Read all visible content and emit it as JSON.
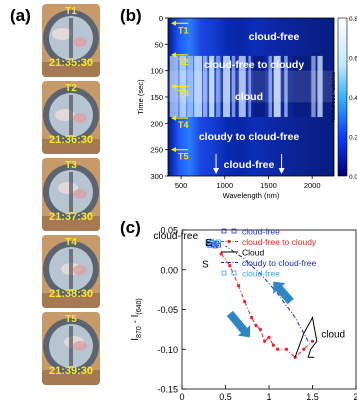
{
  "panel_a": {
    "label": "(a)",
    "frames": [
      {
        "tag": "T1",
        "time": "21:35:30"
      },
      {
        "tag": "T2",
        "time": "21:36:30"
      },
      {
        "tag": "T3",
        "time": "21:37:30"
      },
      {
        "tag": "T4",
        "time": "21:38:30"
      },
      {
        "tag": "T5",
        "time": "21:39:30"
      }
    ]
  },
  "panel_b": {
    "label": "(b)",
    "ylabel": "Time (sec)",
    "xlabel": "Wavelength (nm)",
    "yticks": [
      "0",
      "50",
      "100",
      "150",
      "200",
      "250",
      "300"
    ],
    "xticks": [
      "500",
      "1000",
      "1500",
      "2000"
    ],
    "markers": [
      "T1",
      "T2",
      "T3",
      "T4",
      "T5"
    ],
    "annotations": [
      "cloud-free",
      "cloud-free to cloudy",
      "cloud",
      "cloudy to cloud-free",
      "cloud-free"
    ],
    "colorbar_label": "Normalized radiance",
    "colorbar_ticks": [
      "0.8",
      "0.6",
      "0.4",
      "0.2",
      "0.0"
    ]
  },
  "panel_c": {
    "label": "(c)",
    "ylabel_main": "I",
    "ylabel_sub1": "870",
    "ylabel_mid": " - I",
    "ylabel_sub2": "(640)",
    "yticks": [
      "0.05",
      "0.00",
      "-0.05",
      "-0.10",
      "-0.15"
    ],
    "xticks": [
      "0",
      "0.5",
      "1",
      "1.5",
      "2"
    ],
    "annotations": {
      "cloud_free": "cloud-free",
      "E": "E",
      "S": "S",
      "cloud": "cloud"
    },
    "legend": [
      {
        "name": "cloud-free",
        "color": "#2233dd",
        "style": "square"
      },
      {
        "name": "cloud-free to cloudy",
        "color": "#ee2222",
        "style": "dash-dot-circle"
      },
      {
        "name": "Cloud",
        "color": "#000000",
        "style": "line"
      },
      {
        "name": "cloudy to cloud-free",
        "color": "#1a2ab0",
        "style": "dash-dot"
      },
      {
        "name": "cloud-free",
        "color": "#33aaee",
        "style": "square"
      }
    ]
  },
  "chart_data": [
    {
      "type": "heatmap",
      "xlabel": "Wavelength (nm)",
      "ylabel": "Time (sec)",
      "xlim": [
        350,
        2250
      ],
      "ylim": [
        0,
        300
      ],
      "colorbar": {
        "label": "Normalized radiance",
        "range": [
          0.0,
          0.8
        ]
      },
      "events": [
        {
          "label": "T1",
          "time": 10
        },
        {
          "label": "T2",
          "time": 70
        },
        {
          "label": "T3",
          "time": 130
        },
        {
          "label": "T4",
          "time": 190
        },
        {
          "label": "T5",
          "time": 250
        }
      ]
    },
    {
      "type": "scatter",
      "xlabel": "",
      "ylabel": "I870 - I(640)",
      "xlim": [
        0,
        2
      ],
      "ylim": [
        -0.15,
        0.05
      ],
      "series": [
        {
          "name": "cloud-free",
          "points": [
            [
              0.3,
              0.033
            ],
            [
              0.32,
              0.031
            ],
            [
              0.34,
              0.034
            ],
            [
              0.36,
              0.032
            ],
            [
              0.38,
              0.03
            ],
            [
              0.4,
              0.033
            ],
            [
              0.42,
              0.031
            ]
          ]
        },
        {
          "name": "cloud-free to cloudy",
          "points": [
            [
              0.45,
              0.02
            ],
            [
              0.55,
              0.005
            ],
            [
              0.65,
              -0.02
            ],
            [
              0.72,
              -0.04
            ],
            [
              0.8,
              -0.06
            ],
            [
              0.85,
              -0.07
            ],
            [
              0.9,
              -0.075
            ],
            [
              0.95,
              -0.09
            ],
            [
              1.0,
              -0.085
            ],
            [
              1.05,
              -0.095
            ],
            [
              1.1,
              -0.1
            ],
            [
              1.2,
              -0.1
            ],
            [
              1.3,
              -0.11
            ],
            [
              1.4,
              -0.1
            ],
            [
              1.5,
              -0.09
            ]
          ]
        },
        {
          "name": "Cloud",
          "points": [
            [
              1.3,
              -0.11
            ],
            [
              1.4,
              -0.08
            ],
            [
              1.5,
              -0.06
            ],
            [
              1.55,
              -0.09
            ],
            [
              1.48,
              -0.1
            ],
            [
              1.45,
              -0.11
            ],
            [
              1.52,
              -0.11
            ]
          ]
        },
        {
          "name": "cloudy to cloud-free",
          "points": [
            [
              1.45,
              -0.09
            ],
            [
              1.3,
              -0.06
            ],
            [
              1.1,
              -0.03
            ],
            [
              0.9,
              -0.005
            ],
            [
              0.7,
              0.015
            ],
            [
              0.5,
              0.03
            ]
          ]
        },
        {
          "name": "cloud-free",
          "points": [
            [
              0.3,
              0.035
            ],
            [
              0.34,
              0.036
            ],
            [
              0.38,
              0.034
            ],
            [
              0.42,
              0.035
            ]
          ]
        }
      ]
    }
  ]
}
